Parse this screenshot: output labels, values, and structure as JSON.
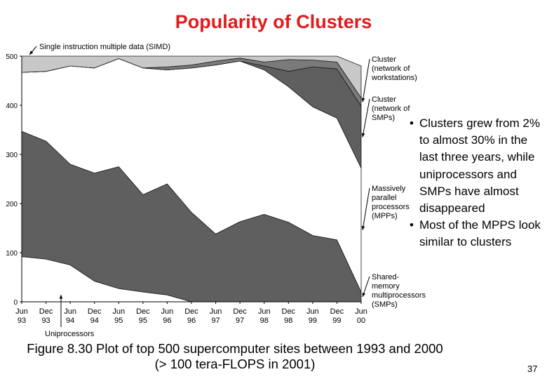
{
  "slide": {
    "title": "Popularity of Clusters",
    "bullets": [
      "Clusters grew from 2% to almost 30% in the last three years, while uniprocessors and SMPs have almost disappeared",
      "Most of the MPPS look similar to clusters"
    ],
    "caption_lines": [
      "Figure 8.30 Plot of top 500 supercomputer sites between 1993 and 2000",
      "(> 100 tera-FLOPS in 2001)"
    ],
    "page_number": "37"
  },
  "chart_data": {
    "type": "area",
    "stacked": true,
    "categories": [
      "Jun 93",
      "Dec 93",
      "Jun 94",
      "Dec 94",
      "Jun 95",
      "Dec 95",
      "Jun 96",
      "Dec 96",
      "Jun 97",
      "Dec 97",
      "Jun 98",
      "Dec 98",
      "Jun 99",
      "Dec 99",
      "Jun 00"
    ],
    "tick_labels": [
      [
        "Jun",
        "93"
      ],
      [
        "Dec",
        "93"
      ],
      [
        "Jun",
        "94"
      ],
      [
        "Dec",
        "94"
      ],
      [
        "Jun",
        "95"
      ],
      [
        "Dec",
        "95"
      ],
      [
        "Jun",
        "96"
      ],
      [
        "Dec",
        "96"
      ],
      [
        "Jun",
        "97"
      ],
      [
        "Dec",
        "97"
      ],
      [
        "Jun",
        "98"
      ],
      [
        "Dec",
        "98"
      ],
      [
        "Jun",
        "99"
      ],
      [
        "Dec",
        "99"
      ],
      [
        "Jun",
        "00"
      ]
    ],
    "yticks": [
      0,
      100,
      200,
      300,
      400,
      500
    ],
    "ylim": [
      0,
      500
    ],
    "series": [
      {
        "name": "Uniprocessors",
        "label_lines": [
          "Uniprocessors"
        ],
        "color": "#ffffff",
        "values": [
          92,
          87,
          75,
          42,
          27,
          20,
          14,
          0,
          0,
          0,
          0,
          0,
          0,
          0,
          0
        ]
      },
      {
        "name": "Shared-memory multiprocessors (SMPs)",
        "label_lines": [
          "Shared-",
          "memory",
          "multiprocessors",
          "(SMPs)"
        ],
        "color": "#5f5f5f",
        "values": [
          255,
          240,
          205,
          220,
          248,
          198,
          226,
          182,
          138,
          163,
          178,
          162,
          135,
          126,
          20
        ]
      },
      {
        "name": "Massively parallel processors (MPPs)",
        "label_lines": [
          "Massively",
          "parallel",
          "processors",
          "(MPPs)"
        ],
        "color": "#ffffff",
        "values": [
          120,
          142,
          200,
          214,
          220,
          258,
          232,
          294,
          344,
          327,
          294,
          276,
          262,
          248,
          252
        ]
      },
      {
        "name": "Cluster (network of SMPs)",
        "label_lines": [
          "Cluster",
          "(network of",
          "SMPs)"
        ],
        "color": "#5f5f5f",
        "values": [
          0,
          0,
          0,
          0,
          0,
          0,
          0,
          0,
          0,
          0,
          8,
          31,
          81,
          100,
          126
        ]
      },
      {
        "name": "Cluster (network of workstations)",
        "label_lines": [
          "Cluster",
          "(network of",
          "workstations)"
        ],
        "color": "#7a7a7a",
        "values": [
          0,
          0,
          0,
          0,
          0,
          0,
          6,
          6,
          8,
          6,
          8,
          24,
          14,
          14,
          17
        ]
      },
      {
        "name": "Single instruction multiple data (SIMD)",
        "label_lines": [
          "Single instruction multiple data (SIMD)"
        ],
        "color": "#c8c8c8",
        "values": [
          33,
          31,
          20,
          24,
          5,
          24,
          22,
          18,
          10,
          4,
          12,
          7,
          8,
          12,
          65
        ]
      }
    ],
    "annotations": [
      "Single instruction multiple data (SIMD)",
      "Uniprocessors"
    ],
    "grid": false,
    "legend": "right-side labels with arrows"
  }
}
